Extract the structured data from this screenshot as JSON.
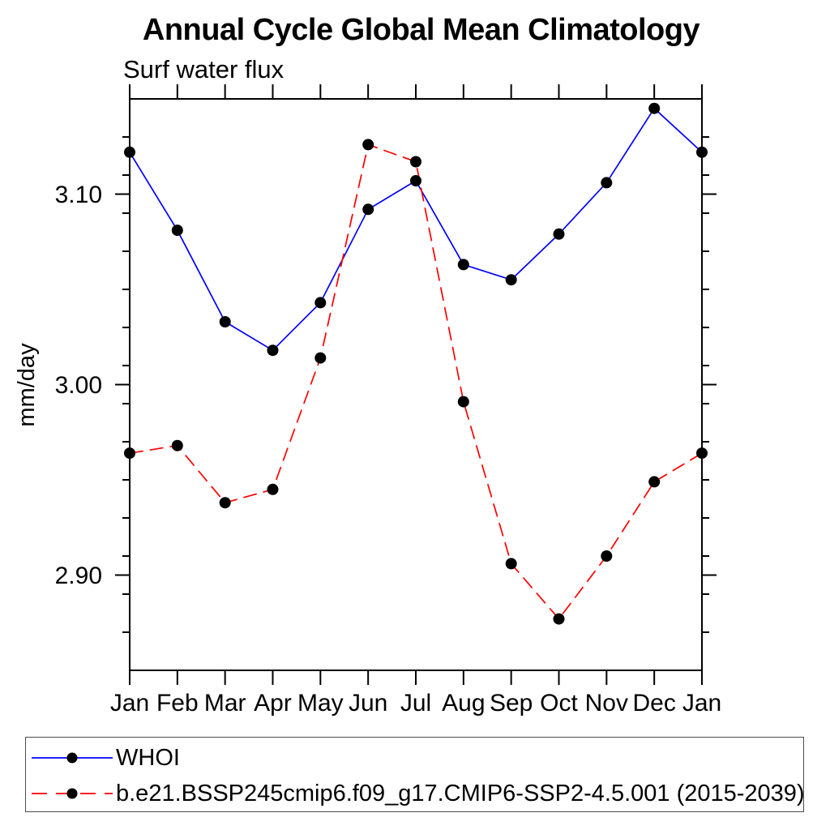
{
  "title": "Annual Cycle Global Mean Climatology",
  "subtitle": "Surf water flux",
  "ylabel": "mm/day",
  "colors": {
    "whoi_line": "#0000ff",
    "model_line": "#ff0000",
    "marker": "#000000",
    "axis": "#000000",
    "legend_border": "#4d4d4d",
    "background": "#ffffff"
  },
  "legend": {
    "position": "bottom",
    "entries": [
      {
        "label": "WHOI",
        "color": "#0000ff",
        "dash": false
      },
      {
        "label": "b.e21.BSSP245cmip6.f09_g17.CMIP6-SSP2-4.5.001 (2015-2039)",
        "color": "#ff0000",
        "dash": true
      }
    ]
  },
  "chart_data": {
    "type": "line",
    "title": "Annual Cycle Global Mean Climatology",
    "subtitle": "Surf water flux",
    "xlabel": "",
    "ylabel": "mm/day",
    "categories": [
      "Jan",
      "Feb",
      "Mar",
      "Apr",
      "May",
      "Jun",
      "Jul",
      "Aug",
      "Sep",
      "Oct",
      "Nov",
      "Dec",
      "Jan"
    ],
    "series": [
      {
        "name": "WHOI",
        "color": "#0000ff",
        "style": "solid",
        "marker": "filled-circle",
        "values": [
          3.122,
          3.081,
          3.033,
          3.018,
          3.043,
          3.092,
          3.107,
          3.063,
          3.055,
          3.079,
          3.106,
          3.145,
          3.122
        ]
      },
      {
        "name": "b.e21.BSSP245cmip6.f09_g17.CMIP6-SSP2-4.5.001 (2015-2039)",
        "color": "#ff0000",
        "style": "dashed",
        "marker": "filled-circle",
        "values": [
          2.964,
          2.968,
          2.938,
          2.945,
          3.014,
          3.126,
          3.117,
          2.991,
          2.906,
          2.877,
          2.91,
          2.949,
          2.964
        ]
      }
    ],
    "ylim": [
      2.85,
      3.15
    ],
    "yticks_major": [
      2.9,
      3.0,
      3.1
    ],
    "ytick_labels": [
      "2.90",
      "3.00",
      "3.10"
    ],
    "ytick_minor_step": 0.02,
    "grid": false,
    "frame": true,
    "legend_position": "bottom"
  }
}
